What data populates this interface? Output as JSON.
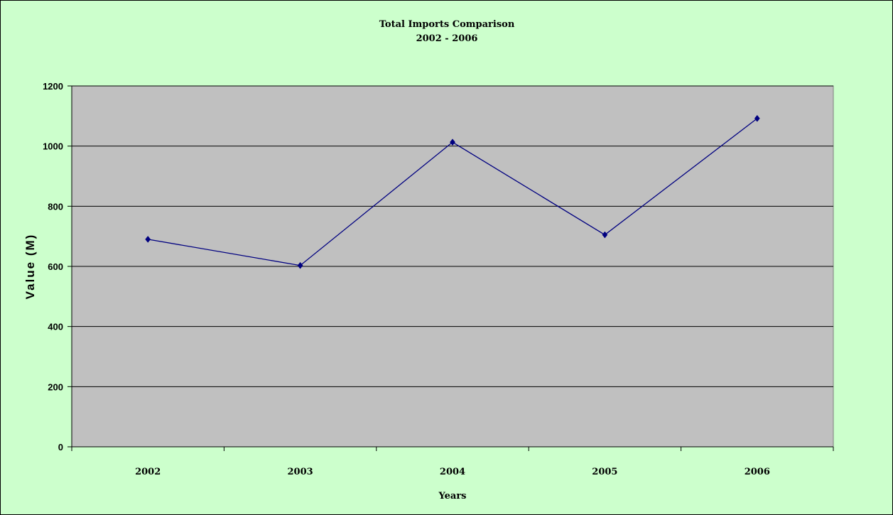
{
  "chart_data": {
    "type": "line",
    "title": "Total Imports Comparison",
    "subtitle": "2002 - 2006",
    "xlabel": "Years",
    "ylabel": "Value (M)",
    "categories": [
      "2002",
      "2003",
      "2004",
      "2005",
      "2006"
    ],
    "series": [
      {
        "values": [
          690,
          603,
          1013,
          705,
          1092
        ]
      }
    ],
    "ylim": [
      0,
      1200
    ],
    "yticks": [
      "0",
      "200",
      "400",
      "600",
      "800",
      "1000",
      "1200"
    ],
    "grid": true,
    "legend": "none",
    "colors": {
      "chart_background": "#ccffcc",
      "plot_background": "#c0c0c0",
      "series_line": "#000080",
      "gridline": "#000000"
    }
  }
}
